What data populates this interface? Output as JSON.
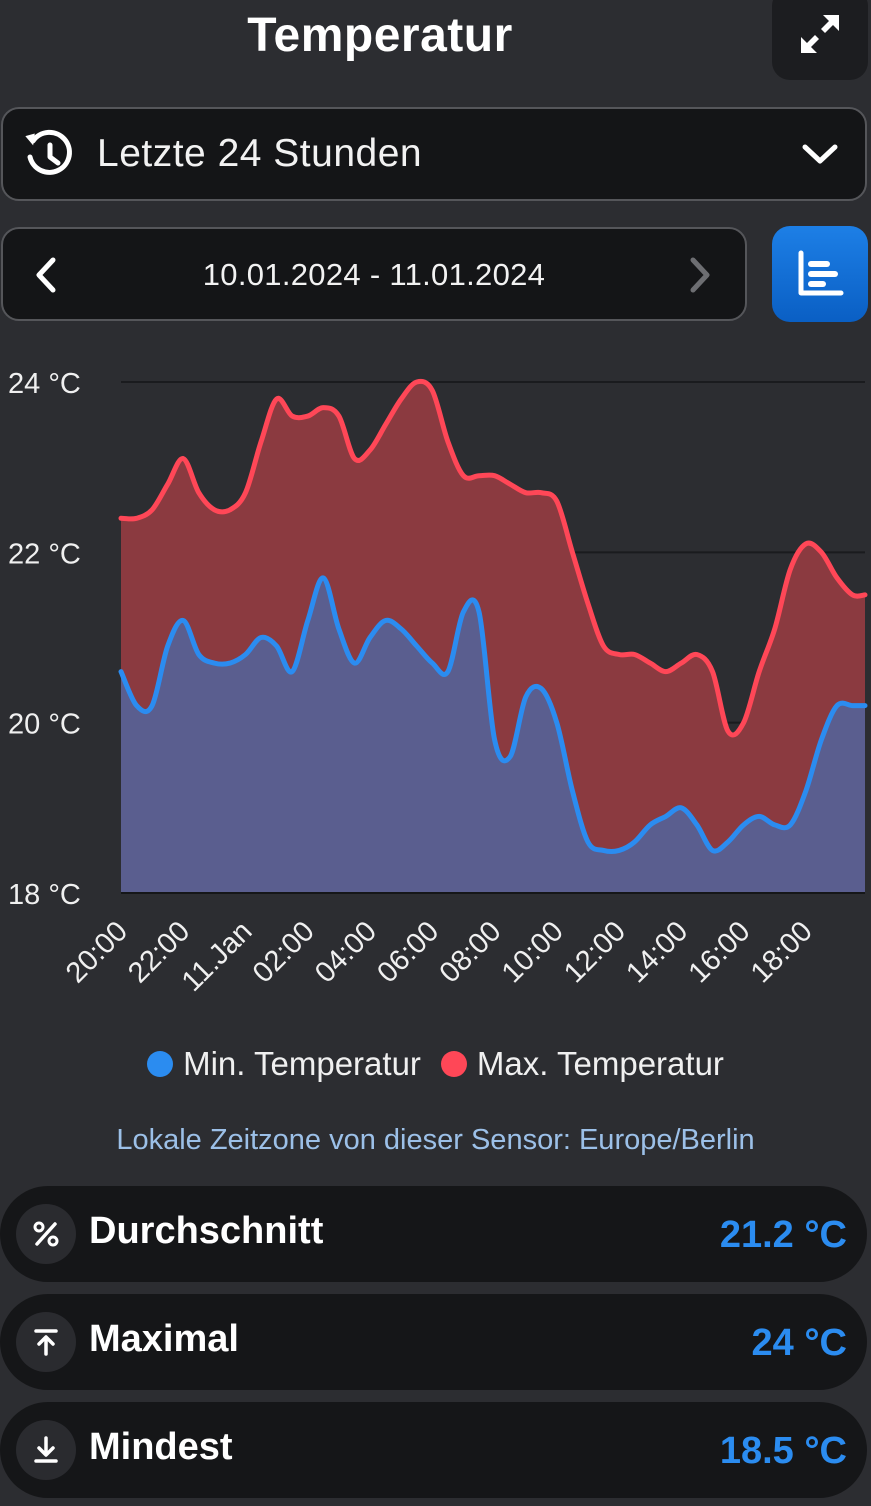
{
  "header": {
    "title": "Temperatur",
    "expand_icon": "expand-icon"
  },
  "range_select": {
    "icon": "history-icon",
    "label": "Letzte 24 Stunden",
    "dropdown_icon": "chevron-down-icon"
  },
  "date_nav": {
    "range": "10.01.2024 - 11.01.2024",
    "prev_icon": "chevron-left-icon",
    "next_icon": "chevron-right-icon",
    "next_enabled": false
  },
  "chart_type_button": {
    "icon": "bar-chart-icon",
    "color": "#1677e0"
  },
  "chart_data": {
    "type": "area",
    "y_unit": "°C",
    "ylim": [
      18,
      24
    ],
    "y_ticks": [
      "18 °C",
      "20 °C",
      "22 °C",
      "24 °C"
    ],
    "x_ticks": [
      "20:00",
      "22:00",
      "11.Jan",
      "02:00",
      "04:00",
      "06:00",
      "08:00",
      "10:00",
      "12:00",
      "14:00",
      "16:00",
      "18:00"
    ],
    "x_range_hours": [
      0,
      23.9
    ],
    "grid": true,
    "legend_position": "bottom",
    "series": [
      {
        "name": "Max. Temperatur",
        "color": "#ff4757",
        "fill": "#8b3a40",
        "x": [
          0,
          0.5,
          1,
          1.5,
          2,
          2.5,
          3,
          3.5,
          4,
          4.5,
          5,
          5.5,
          6,
          6.5,
          7,
          7.5,
          8,
          8.5,
          9,
          9.5,
          10,
          10.5,
          11,
          11.5,
          12,
          12.5,
          13,
          13.5,
          14,
          14.5,
          15,
          15.5,
          16,
          16.5,
          17,
          17.5,
          18,
          18.5,
          19,
          19.5,
          20,
          20.5,
          21,
          21.5,
          22,
          22.5,
          23,
          23.5,
          23.9
        ],
        "values": [
          22.4,
          22.4,
          22.5,
          22.8,
          23.1,
          22.7,
          22.5,
          22.5,
          22.7,
          23.3,
          23.8,
          23.6,
          23.6,
          23.7,
          23.6,
          23.1,
          23.2,
          23.5,
          23.8,
          24.0,
          23.9,
          23.3,
          22.9,
          22.9,
          22.9,
          22.8,
          22.7,
          22.7,
          22.6,
          22.0,
          21.4,
          20.9,
          20.8,
          20.8,
          20.7,
          20.6,
          20.7,
          20.8,
          20.6,
          19.9,
          20.0,
          20.6,
          21.1,
          21.8,
          22.1,
          22.0,
          21.7,
          21.5,
          21.5
        ]
      },
      {
        "name": "Min. Temperatur",
        "color": "#2b8cf0",
        "fill": "#5a5e8f",
        "x": [
          0,
          0.5,
          1,
          1.5,
          2,
          2.5,
          3,
          3.5,
          4,
          4.5,
          5,
          5.5,
          6,
          6.5,
          7,
          7.5,
          8,
          8.5,
          9,
          9.5,
          10,
          10.5,
          11,
          11.5,
          12,
          12.5,
          13,
          13.5,
          14,
          14.5,
          15,
          15.5,
          16,
          16.5,
          17,
          17.5,
          18,
          18.5,
          19,
          19.5,
          20,
          20.5,
          21,
          21.5,
          22,
          22.5,
          23,
          23.5,
          23.9
        ],
        "values": [
          20.6,
          20.2,
          20.2,
          20.9,
          21.2,
          20.8,
          20.7,
          20.7,
          20.8,
          21.0,
          20.9,
          20.6,
          21.2,
          21.7,
          21.1,
          20.7,
          21.0,
          21.2,
          21.1,
          20.9,
          20.7,
          20.6,
          21.3,
          21.3,
          19.8,
          19.6,
          20.3,
          20.4,
          20.0,
          19.2,
          18.6,
          18.5,
          18.5,
          18.6,
          18.8,
          18.9,
          19.0,
          18.8,
          18.5,
          18.6,
          18.8,
          18.9,
          18.8,
          18.8,
          19.2,
          19.8,
          20.2,
          20.2,
          20.2
        ]
      }
    ]
  },
  "legend": {
    "min_label": "Min. Temperatur",
    "max_label": "Max. Temperatur"
  },
  "timezone_note": "Lokale Zeitzone von dieser Sensor: Europe/Berlin",
  "stats": [
    {
      "icon": "percent-icon",
      "label": "Durchschnitt",
      "value": "21.2 °C"
    },
    {
      "icon": "arrow-up-to-line-icon",
      "label": "Maximal",
      "value": "24 °C"
    },
    {
      "icon": "arrow-down-to-line-icon",
      "label": "Mindest",
      "value": "18.5 °C"
    }
  ]
}
